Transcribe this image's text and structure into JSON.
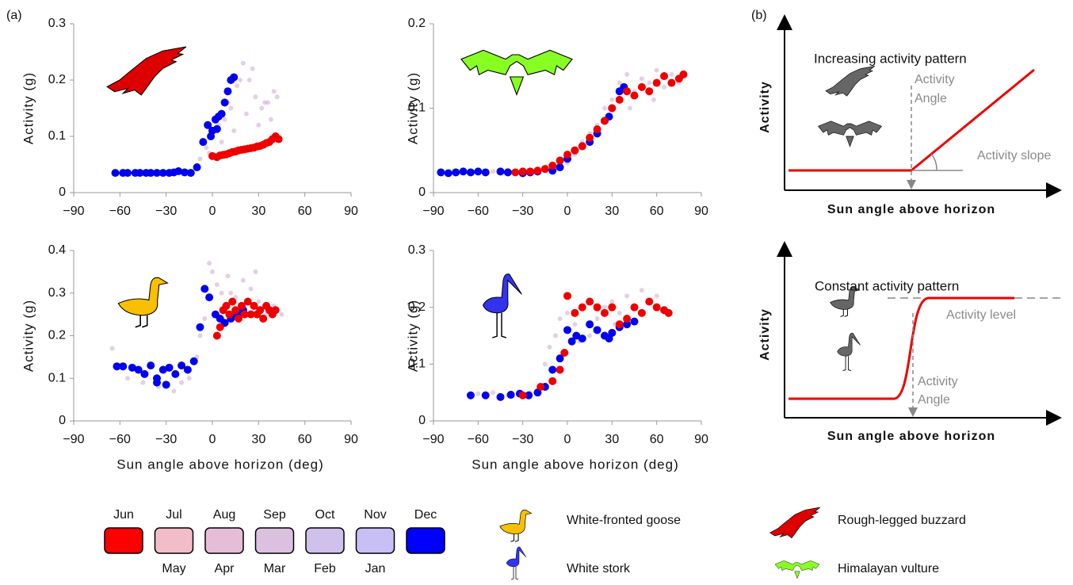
{
  "panel_labels": [
    "(a)",
    "(b)"
  ],
  "chart_data": [
    {
      "type": "scatter",
      "ylabel": "Activity (g)",
      "xlim": [
        -90,
        90
      ],
      "ylim": [
        0,
        0.3
      ],
      "xticks": [
        {
          "value": -90,
          "label": "−90"
        },
        {
          "value": -60,
          "label": "−60"
        },
        {
          "value": -30,
          "label": "−30"
        },
        0,
        30,
        60,
        90
      ],
      "yticks": [
        0,
        0.1,
        0.2,
        0.3
      ],
      "series": [
        {
          "color": "#c9a2cc",
          "opacity": 0.5,
          "x": [
            -8,
            -4,
            0,
            4,
            8,
            12,
            16,
            20,
            24,
            28,
            32,
            36,
            40,
            -2,
            6,
            14,
            22,
            30,
            38,
            10,
            18,
            26,
            34,
            42
          ],
          "values": [
            0.06,
            0.08,
            0.1,
            0.12,
            0.13,
            0.15,
            0.19,
            0.23,
            0.2,
            0.17,
            0.15,
            0.16,
            0.18,
            0.07,
            0.09,
            0.11,
            0.14,
            0.12,
            0.13,
            0.16,
            0.2,
            0.22,
            0.16,
            0.17
          ]
        },
        {
          "color": "#0000ee",
          "opacity": 1,
          "x": [
            -63,
            -58,
            -55,
            -50,
            -47,
            -43,
            -40,
            -36,
            -32,
            -28,
            -25,
            -22,
            -18,
            -14,
            -10,
            -6,
            -3,
            0,
            2,
            4,
            6,
            8,
            10,
            12,
            14,
            -1,
            3
          ],
          "values": [
            0.035,
            0.035,
            0.035,
            0.035,
            0.035,
            0.035,
            0.035,
            0.035,
            0.035,
            0.035,
            0.036,
            0.038,
            0.036,
            0.035,
            0.045,
            0.09,
            0.12,
            0.11,
            0.13,
            0.135,
            0.14,
            0.16,
            0.18,
            0.2,
            0.205,
            0.1,
            0.113
          ]
        },
        {
          "color": "#ee0000",
          "opacity": 1,
          "x": [
            0,
            3,
            5,
            7,
            9,
            11,
            13,
            15,
            17,
            19,
            21,
            23,
            25,
            27,
            29,
            31,
            33,
            35,
            37,
            39,
            41,
            43
          ],
          "values": [
            0.065,
            0.063,
            0.066,
            0.067,
            0.068,
            0.07,
            0.072,
            0.073,
            0.075,
            0.076,
            0.077,
            0.078,
            0.079,
            0.08,
            0.082,
            0.083,
            0.085,
            0.088,
            0.09,
            0.095,
            0.1,
            0.095
          ]
        }
      ]
    },
    {
      "type": "scatter",
      "ylabel": "Activity (g)",
      "xlim": [
        -90,
        90
      ],
      "ylim": [
        0,
        0.2
      ],
      "xticks": [
        {
          "value": -90,
          "label": "−90"
        },
        {
          "value": -60,
          "label": "−60"
        },
        {
          "value": -30,
          "label": "−30"
        },
        0,
        30,
        60,
        90
      ],
      "yticks": [
        0,
        0.1,
        0.2
      ],
      "series": [
        {
          "color": "#c9a2cc",
          "opacity": 0.5,
          "x": [
            -60,
            -40,
            -20,
            -10,
            0,
            10,
            20,
            25,
            30,
            35,
            40,
            45,
            50,
            55,
            60,
            65,
            70,
            75,
            -50,
            5,
            15,
            42,
            58
          ],
          "values": [
            0.026,
            0.027,
            0.028,
            0.03,
            0.035,
            0.06,
            0.08,
            0.1,
            0.11,
            0.13,
            0.14,
            0.12,
            0.135,
            0.13,
            0.145,
            0.125,
            0.14,
            0.13,
            0.025,
            0.045,
            0.07,
            0.1,
            0.11
          ]
        },
        {
          "color": "#0000ee",
          "opacity": 1,
          "x": [
            -85,
            -80,
            -75,
            -70,
            -65,
            -60,
            -55,
            -45,
            -40,
            -30,
            -25,
            -20,
            -10,
            -5,
            0,
            5,
            10,
            15,
            20,
            25,
            28,
            30,
            35,
            38
          ],
          "values": [
            0.024,
            0.023,
            0.024,
            0.025,
            0.024,
            0.025,
            0.024,
            0.025,
            0.024,
            0.023,
            0.024,
            0.025,
            0.026,
            0.03,
            0.04,
            0.05,
            0.055,
            0.06,
            0.07,
            0.085,
            0.09,
            0.1,
            0.12,
            0.125
          ]
        },
        {
          "color": "#ee0000",
          "opacity": 1,
          "x": [
            -35,
            -30,
            -25,
            -20,
            -15,
            -10,
            -5,
            0,
            5,
            10,
            15,
            20,
            25,
            30,
            35,
            40,
            45,
            50,
            55,
            60,
            65,
            70,
            75,
            78
          ],
          "values": [
            0.024,
            0.025,
            0.025,
            0.026,
            0.028,
            0.032,
            0.038,
            0.045,
            0.05,
            0.055,
            0.065,
            0.075,
            0.085,
            0.1,
            0.11,
            0.12,
            0.115,
            0.125,
            0.12,
            0.13,
            0.138,
            0.13,
            0.135,
            0.14
          ]
        }
      ]
    },
    {
      "type": "scatter",
      "ylabel": "Activity (g)",
      "xlabel": "Sun angle above horizon (deg)",
      "xlim": [
        -90,
        90
      ],
      "ylim": [
        0,
        0.4
      ],
      "xticks": [
        {
          "value": -90,
          "label": "−90"
        },
        {
          "value": -60,
          "label": "−60"
        },
        {
          "value": -30,
          "label": "−30"
        },
        0,
        30,
        60,
        90
      ],
      "yticks": [
        0,
        0.1,
        0.2,
        0.3,
        0.4
      ],
      "series": [
        {
          "color": "#c9a2cc",
          "opacity": 0.5,
          "x": [
            -65,
            -55,
            -45,
            -35,
            -25,
            -15,
            -10,
            -5,
            -2,
            0,
            3,
            6,
            10,
            15,
            20,
            25,
            30,
            35,
            40,
            45,
            -20,
            -8,
            12,
            28
          ],
          "values": [
            0.17,
            0.1,
            0.09,
            0.08,
            0.07,
            0.1,
            0.15,
            0.24,
            0.37,
            0.35,
            0.32,
            0.3,
            0.34,
            0.29,
            0.33,
            0.31,
            0.28,
            0.25,
            0.27,
            0.25,
            0.09,
            0.2,
            0.3,
            0.35
          ]
        },
        {
          "color": "#0000ee",
          "opacity": 1,
          "x": [
            -62,
            -58,
            -52,
            -48,
            -44,
            -40,
            -36,
            -32,
            -28,
            -24,
            -20,
            -16,
            -12,
            -8,
            -5,
            -2,
            2,
            5,
            8,
            12,
            16,
            20,
            -30,
            -36
          ],
          "values": [
            0.128,
            0.128,
            0.125,
            0.12,
            0.11,
            0.13,
            0.1,
            0.12,
            0.125,
            0.11,
            0.13,
            0.12,
            0.14,
            0.22,
            0.31,
            0.29,
            0.25,
            0.24,
            0.23,
            0.24,
            0.25,
            0.26,
            0.085,
            0.09
          ]
        },
        {
          "color": "#ee0000",
          "opacity": 1,
          "x": [
            3,
            5,
            7,
            9,
            11,
            13,
            15,
            17,
            19,
            21,
            23,
            25,
            27,
            29,
            31,
            33,
            35,
            37,
            39,
            41
          ],
          "values": [
            0.2,
            0.22,
            0.26,
            0.27,
            0.25,
            0.28,
            0.26,
            0.24,
            0.27,
            0.25,
            0.28,
            0.25,
            0.27,
            0.25,
            0.26,
            0.24,
            0.27,
            0.26,
            0.25,
            0.26
          ]
        }
      ]
    },
    {
      "type": "scatter",
      "ylabel": "Activity (g)",
      "xlabel": "Sun angle above horizon (deg)",
      "xlim": [
        -90,
        90
      ],
      "ylim": [
        0,
        0.3
      ],
      "xticks": [
        {
          "value": -90,
          "label": "−90"
        },
        {
          "value": -60,
          "label": "−60"
        },
        {
          "value": -30,
          "label": "−30"
        },
        0,
        30,
        60,
        90
      ],
      "yticks": [
        0,
        0.1,
        0.2,
        0.3
      ],
      "series": [
        {
          "color": "#c9a2cc",
          "opacity": 0.5,
          "x": [
            -50,
            -40,
            -25,
            -15,
            -12,
            -8,
            -5,
            0,
            5,
            10,
            15,
            20,
            25,
            30,
            35,
            40,
            45,
            50,
            55,
            60,
            -60,
            8,
            32
          ],
          "values": [
            0.05,
            0.045,
            0.05,
            0.1,
            0.13,
            0.15,
            0.18,
            0.19,
            0.17,
            0.2,
            0.15,
            0.18,
            0.2,
            0.21,
            0.19,
            0.22,
            0.2,
            0.23,
            0.21,
            0.22,
            0.048,
            0.14,
            0.17
          ]
        },
        {
          "color": "#0000ee",
          "opacity": 1,
          "x": [
            -65,
            -55,
            -45,
            -38,
            -32,
            -26,
            -20,
            -15,
            -10,
            -5,
            0,
            3,
            6,
            10,
            15,
            20,
            25,
            28,
            30,
            35,
            40,
            45
          ],
          "values": [
            0.045,
            0.045,
            0.042,
            0.046,
            0.048,
            0.045,
            0.05,
            0.06,
            0.09,
            0.11,
            0.16,
            0.14,
            0.15,
            0.145,
            0.17,
            0.16,
            0.15,
            0.145,
            0.155,
            0.165,
            0.17,
            0.175
          ]
        },
        {
          "color": "#ee0000",
          "opacity": 1,
          "x": [
            -30,
            -18,
            -10,
            -5,
            -2,
            0,
            5,
            10,
            15,
            20,
            25,
            30,
            35,
            40,
            45,
            50,
            55,
            60,
            65,
            68
          ],
          "values": [
            0.045,
            0.06,
            0.07,
            0.09,
            0.12,
            0.22,
            0.19,
            0.2,
            0.21,
            0.2,
            0.19,
            0.2,
            0.17,
            0.18,
            0.2,
            0.19,
            0.21,
            0.2,
            0.195,
            0.19
          ]
        }
      ]
    }
  ],
  "month_legend": {
    "colors": [
      "#ff0000",
      "#f2bdc8",
      "#e6bdd6",
      "#dcc0e0",
      "#d0c0ec",
      "#c8c0f4",
      "#0000ff"
    ],
    "top": [
      "Jun",
      "Jul",
      "Aug",
      "Sep",
      "Oct",
      "Nov",
      "Dec"
    ],
    "bottom": [
      "May",
      "Apr",
      "Mar",
      "Feb",
      "Jan"
    ]
  },
  "species": [
    "White-fronted goose",
    "White stork",
    "Rough-legged buzzard",
    "Himalayan vulture"
  ],
  "schematic": [
    {
      "title": "Increasing activity pattern",
      "ylabel": "Activity",
      "xlabel": "Sun angle above horizon",
      "labels": [
        "Activity",
        "Angle",
        "Activity slope"
      ]
    },
    {
      "title": "Constant activity pattern",
      "ylabel": "Activity",
      "xlabel": "Sun angle above horizon",
      "labels": [
        "Activity level",
        "Activity",
        "Angle"
      ]
    }
  ]
}
